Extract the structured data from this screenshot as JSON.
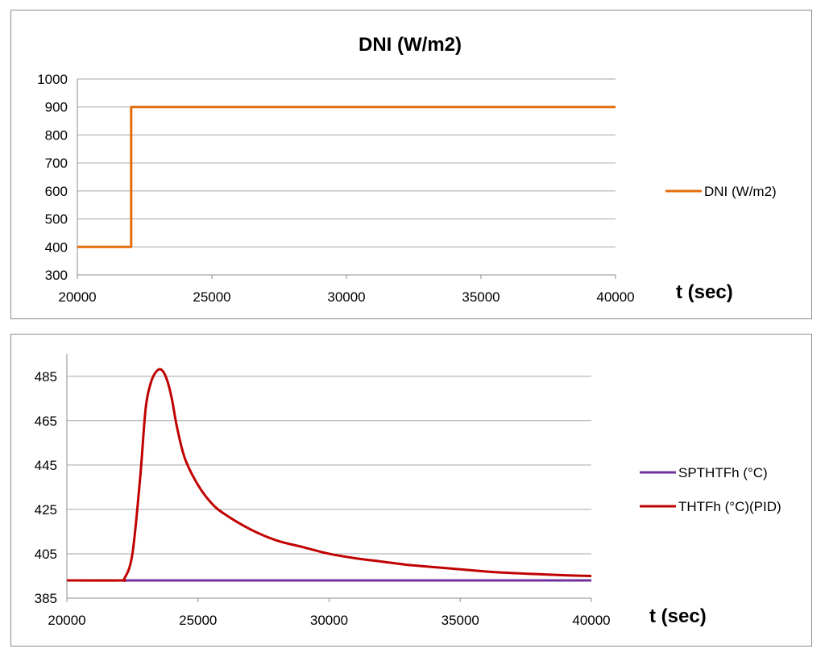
{
  "chart_data": [
    {
      "type": "line",
      "title": "DNI (W/m2)",
      "xlabel": "t (sec)",
      "ylabel": "",
      "xlim": [
        20000,
        40000
      ],
      "ylim": [
        300,
        1000
      ],
      "xticks": [
        "20000",
        "25000",
        "30000",
        "35000",
        "40000"
      ],
      "yticks": [
        "300",
        "400",
        "500",
        "600",
        "700",
        "800",
        "900",
        "1000"
      ],
      "grid": true,
      "legend_position": "right",
      "series": [
        {
          "name": "DNI (W/m2)",
          "color": "#e36c09",
          "x": [
            20000,
            22000,
            22000,
            40000
          ],
          "y": [
            400,
            400,
            900,
            900
          ]
        }
      ]
    },
    {
      "type": "line",
      "title": "",
      "xlabel": "t (sec)",
      "ylabel": "",
      "xlim": [
        20000,
        40000
      ],
      "ylim": [
        385,
        490
      ],
      "xticks": [
        "20000",
        "25000",
        "30000",
        "35000",
        "40000"
      ],
      "yticks": [
        "385",
        "405",
        "425",
        "445",
        "465",
        "485"
      ],
      "grid": true,
      "legend_position": "right",
      "series": [
        {
          "name": "SPTHTFh (°C)",
          "color": "#7030a0",
          "x": [
            20000,
            40000
          ],
          "y": [
            393,
            393
          ]
        },
        {
          "name": "THTFh (°C)(PID)",
          "color": "#c00000",
          "x": [
            20000,
            22000,
            22200,
            22500,
            22800,
            23000,
            23200,
            23400,
            23600,
            23800,
            24000,
            24200,
            24500,
            25000,
            25500,
            26000,
            27000,
            28000,
            29000,
            30000,
            31000,
            32000,
            33000,
            34000,
            35000,
            36000,
            37000,
            38000,
            39000,
            40000
          ],
          "y": [
            393,
            393,
            394,
            405,
            440,
            470,
            482,
            487,
            488,
            484,
            475,
            462,
            448,
            436,
            428,
            423,
            416,
            411,
            408,
            405,
            403,
            401.5,
            400,
            399,
            398,
            397,
            396.3,
            395.8,
            395.3,
            395
          ]
        }
      ]
    }
  ]
}
